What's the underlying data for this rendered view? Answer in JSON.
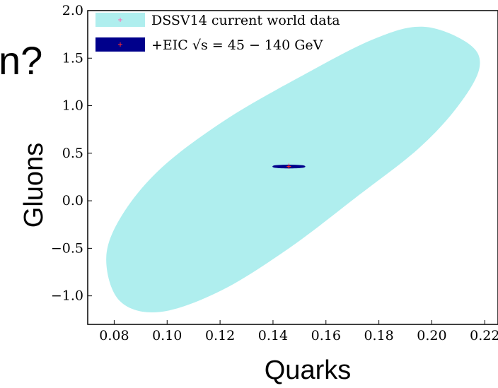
{
  "slide_fragment": "n?",
  "chart_data": {
    "type": "scatter",
    "title": "",
    "xlabel": "Quarks",
    "ylabel": "Gluons",
    "xlim": [
      0.07,
      0.225
    ],
    "ylim": [
      -1.3,
      2.0
    ],
    "x_ticks": [
      0.08,
      0.1,
      0.12,
      0.14,
      0.16,
      0.18,
      0.2,
      0.22
    ],
    "x_tick_labels": [
      "0.08",
      "0.10",
      "0.12",
      "0.14",
      "0.16",
      "0.18",
      "0.20",
      "0.22"
    ],
    "y_ticks": [
      2.0,
      1.5,
      1.0,
      0.5,
      0.0,
      -0.5,
      -1.0
    ],
    "y_tick_labels": [
      "2.0",
      "1.5",
      "1.0",
      "0.5",
      "0.0",
      "−0.5",
      "−1.0"
    ],
    "grid": false,
    "legend_position": "top-left",
    "series": [
      {
        "name": "DSSV14 current world data",
        "kind": "confidence-ellipse",
        "color": "#afeeee",
        "marker_color": "#ff69b4",
        "center": [
          0.146,
          0.37
        ],
        "ellipse_outline": [
          [
            0.197,
            1.83
          ],
          [
            0.214,
            1.65
          ],
          [
            0.218,
            1.4
          ],
          [
            0.21,
            1.0
          ],
          [
            0.195,
            0.55
          ],
          [
            0.172,
            0.05
          ],
          [
            0.146,
            -0.5
          ],
          [
            0.12,
            -0.95
          ],
          [
            0.097,
            -1.17
          ],
          [
            0.082,
            -1.05
          ],
          [
            0.077,
            -0.6
          ],
          [
            0.083,
            -0.15
          ],
          [
            0.098,
            0.35
          ],
          [
            0.122,
            0.85
          ],
          [
            0.15,
            1.3
          ],
          [
            0.178,
            1.7
          ]
        ]
      },
      {
        "name": "+EIC",
        "legend_math": "√s = 45 − 140 GeV",
        "kind": "confidence-ellipse",
        "color": "#00008b",
        "marker_color": "#ff2a2a",
        "center": [
          0.146,
          0.36
        ],
        "ellipse_outline": [
          [
            0.1398,
            0.36
          ],
          [
            0.141,
            0.346
          ],
          [
            0.146,
            0.34
          ],
          [
            0.151,
            0.346
          ],
          [
            0.1522,
            0.36
          ],
          [
            0.151,
            0.374
          ],
          [
            0.146,
            0.38
          ],
          [
            0.141,
            0.374
          ]
        ]
      }
    ]
  }
}
